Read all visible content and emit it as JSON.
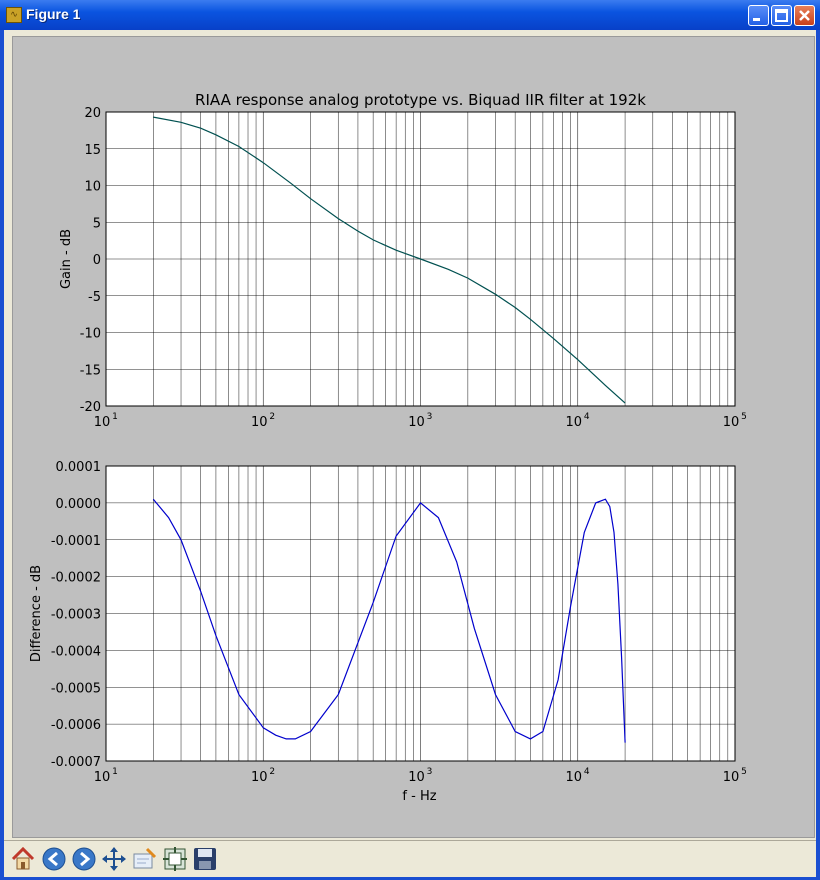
{
  "window": {
    "title": "Figure 1"
  },
  "toolbar": {
    "tools": [
      {
        "name": "home-icon"
      },
      {
        "name": "back-arrow-icon"
      },
      {
        "name": "forward-arrow-icon"
      },
      {
        "name": "pan-move-icon"
      },
      {
        "name": "zoom-rect-icon"
      },
      {
        "name": "subplot-config-icon"
      },
      {
        "name": "save-disk-icon"
      }
    ]
  },
  "colors": {
    "top_line": "#005050",
    "bottom_line": "#0000cc",
    "figure_bg": "#bfbfbf"
  },
  "chart_data": [
    {
      "type": "line",
      "title": "RIAA response analog prototype vs. Biquad IIR filter at 192k",
      "xlabel": "",
      "ylabel": "Gain - dB",
      "xscale": "log",
      "xlim": [
        10,
        100000
      ],
      "ylim": [
        -20,
        20
      ],
      "grid": true,
      "xticks": [
        "10",
        "10",
        "10",
        "10",
        "10"
      ],
      "xtick_exponents": [
        "1",
        "2",
        "3",
        "4",
        "5"
      ],
      "yticks": [
        "20",
        "15",
        "10",
        "5",
        "0",
        "-5",
        "-10",
        "-15",
        "-20"
      ],
      "ytick_values": [
        20,
        15,
        10,
        5,
        0,
        -5,
        -10,
        -15,
        -20
      ],
      "series": [
        {
          "x": [
            20,
            30,
            40,
            50,
            70,
            100,
            150,
            200,
            300,
            400,
            500,
            700,
            1000,
            1500,
            2000,
            3000,
            4000,
            5000,
            7000,
            10000,
            15000,
            20000
          ],
          "y": [
            19.3,
            18.6,
            17.8,
            16.9,
            15.3,
            13.1,
            10.3,
            8.2,
            5.5,
            3.8,
            2.6,
            1.2,
            -0.0,
            -1.4,
            -2.6,
            -4.8,
            -6.6,
            -8.2,
            -10.8,
            -13.7,
            -17.2,
            -19.6
          ]
        }
      ]
    },
    {
      "type": "line",
      "title": "",
      "xlabel": "f - Hz",
      "ylabel": "Difference - dB",
      "xscale": "log",
      "xlim": [
        10,
        100000
      ],
      "ylim": [
        -0.0007,
        0.0001
      ],
      "grid": true,
      "xticks": [
        "10",
        "10",
        "10",
        "10",
        "10"
      ],
      "xtick_exponents": [
        "1",
        "2",
        "3",
        "4",
        "5"
      ],
      "yticks": [
        "0.0001",
        "0.0000",
        "-0.0001",
        "-0.0002",
        "-0.0003",
        "-0.0004",
        "-0.0005",
        "-0.0006",
        "-0.0007"
      ],
      "ytick_values": [
        0.0001,
        0.0,
        -0.0001,
        -0.0002,
        -0.0003,
        -0.0004,
        -0.0005,
        -0.0006,
        -0.0007
      ],
      "series": [
        {
          "x": [
            20,
            25,
            30,
            40,
            50,
            70,
            100,
            120,
            140,
            160,
            200,
            300,
            500,
            700,
            1000,
            1300,
            1700,
            2200,
            3000,
            4000,
            5000,
            6000,
            7500,
            9000,
            11000,
            13000,
            15000,
            16000,
            17000,
            18000,
            19000,
            20000
          ],
          "y": [
            1e-05,
            -4e-05,
            -0.0001,
            -0.00024,
            -0.00036,
            -0.00052,
            -0.00061,
            -0.00063,
            -0.00064,
            -0.00064,
            -0.00062,
            -0.00052,
            -0.00027,
            -9e-05,
            0.0,
            -4e-05,
            -0.00016,
            -0.00034,
            -0.00052,
            -0.00062,
            -0.00064,
            -0.00062,
            -0.00048,
            -0.00028,
            -8e-05,
            0.0,
            1e-05,
            -1e-05,
            -8e-05,
            -0.00022,
            -0.00042,
            -0.00065
          ]
        }
      ]
    }
  ]
}
